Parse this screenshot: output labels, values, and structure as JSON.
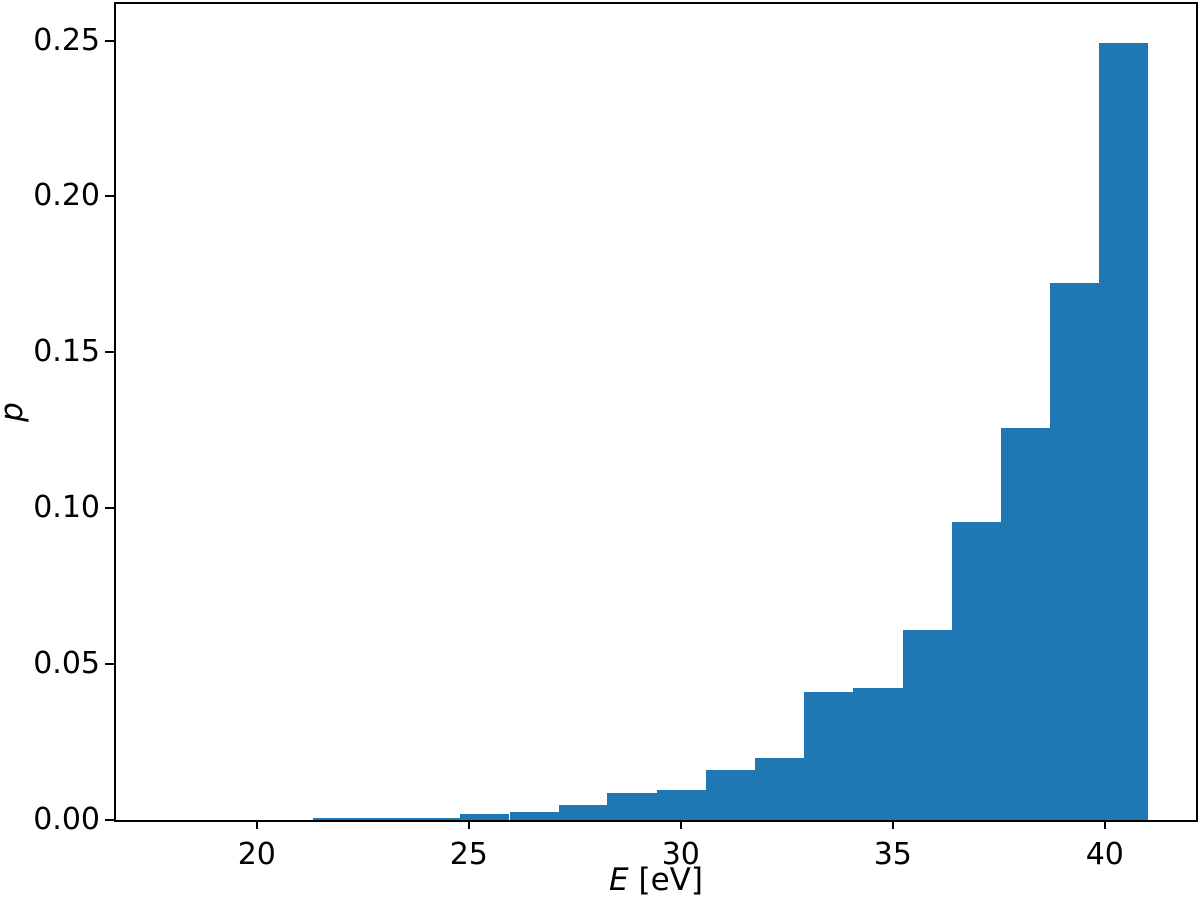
{
  "figure": {
    "background": "#ffffff",
    "bar_color": "#1f77b4",
    "axis_color": "#000000",
    "text_color": "#000000"
  },
  "chart_data": {
    "type": "bar",
    "subtype": "histogram",
    "title": "",
    "xlabel": "E [eV]",
    "xlabel_var": "E",
    "xlabel_unit": " [eV]",
    "ylabel": "p",
    "bin_edges": [
      21.32,
      22.48,
      23.64,
      24.8,
      25.96,
      27.12,
      28.27,
      29.43,
      30.59,
      31.75,
      32.91,
      34.07,
      35.23,
      36.39,
      37.55,
      38.71,
      39.87,
      41.03
    ],
    "values": [
      0.0006,
      0.0006,
      0.0006,
      0.0019,
      0.0027,
      0.0048,
      0.0087,
      0.0096,
      0.016,
      0.02,
      0.041,
      0.0423,
      0.061,
      0.0955,
      0.1256,
      0.1721,
      0.2493
    ],
    "x_ticks": [
      20,
      25,
      30,
      35,
      40
    ],
    "x_tick_labels": [
      "20",
      "25",
      "30",
      "35",
      "40"
    ],
    "y_ticks": [
      0.0,
      0.05,
      0.1,
      0.15,
      0.2,
      0.25
    ],
    "y_tick_labels": [
      "0.00",
      "0.05",
      "0.10",
      "0.15",
      "0.20",
      "0.25"
    ],
    "xlim": [
      16.68,
      42.15
    ],
    "ylim": [
      0,
      0.2617
    ],
    "grid": false,
    "legend": null
  }
}
